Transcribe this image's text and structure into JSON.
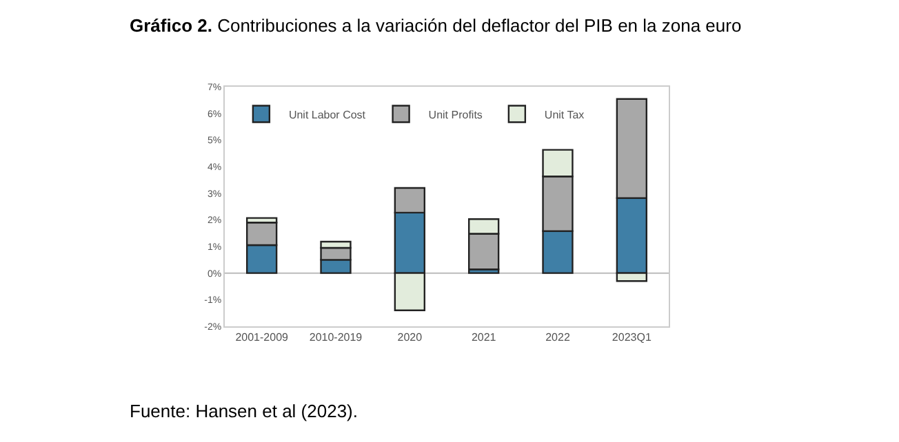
{
  "chart_data": {
    "type": "bar",
    "stacked": true,
    "title": "Gráfico 2. Contribuciones a la variación del deflactor del PIB en la zona euro",
    "categories": [
      "2001-2009",
      "2010-2019",
      "2020",
      "2021",
      "2022",
      "2023Q1"
    ],
    "series": [
      {
        "name": "Unit Labor Cost",
        "color": "#3f7fa6",
        "values": [
          1.05,
          0.5,
          2.27,
          0.14,
          1.58,
          2.82
        ]
      },
      {
        "name": "Unit Profits",
        "color": "#a8a8a8",
        "values": [
          0.85,
          0.45,
          0.93,
          1.34,
          2.05,
          3.72
        ]
      },
      {
        "name": "Unit Tax",
        "color": "#e2ecdc",
        "values": [
          0.17,
          0.23,
          -1.4,
          0.55,
          1.0,
          -0.3
        ]
      }
    ],
    "ylim": [
      -2,
      7
    ],
    "yticks": [
      {
        "value": -2,
        "label": "-2%"
      },
      {
        "value": -1,
        "label": "-1%"
      },
      {
        "value": 0,
        "label": "0%"
      },
      {
        "value": 1,
        "label": "1%"
      },
      {
        "value": 2,
        "label": "2%"
      },
      {
        "value": 3,
        "label": "3%"
      },
      {
        "value": 4,
        "label": "4%"
      },
      {
        "value": 5,
        "label": "5%"
      },
      {
        "value": 6,
        "label": "6%"
      },
      {
        "value": 7,
        "label": "7%"
      }
    ],
    "grid": false,
    "legend": "top left",
    "ref_lines": [
      {
        "axis": "y",
        "value": 0,
        "color": "#bbbbbb"
      }
    ],
    "annotations": [
      "Fuente: Hansen et al (2023)."
    ]
  }
}
